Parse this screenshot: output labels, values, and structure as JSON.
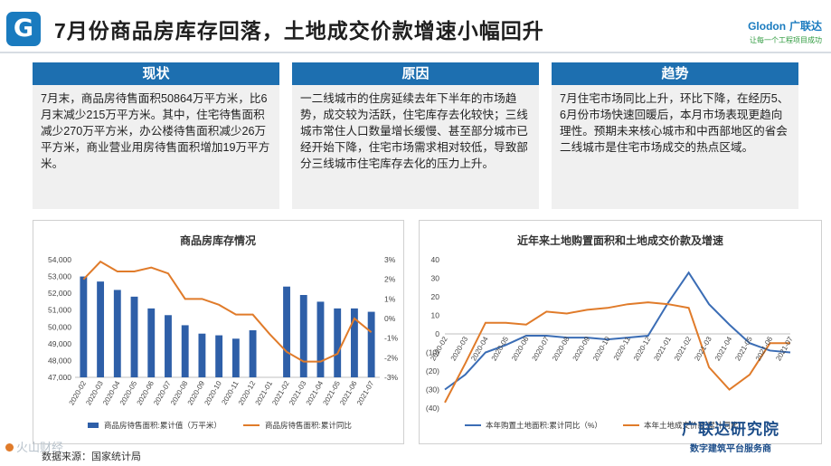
{
  "header": {
    "logo_letter": "G",
    "title": "7月份商品房库存回落，土地成交价款增速小幅回升",
    "brand_name": "Glodon",
    "brand_cn": "广联达",
    "brand_slogan": "让每一个工程项目成功"
  },
  "cards": [
    {
      "heading": "现状",
      "text": "7月末，商品房待售面积50864万平方米，比6月末减少215万平方米。其中，住宅待售面积减少270万平方米，办公楼待售面积减少26万平方米，商业营业用房待售面积增加19万平方米。"
    },
    {
      "heading": "原因",
      "text": "一二线城市的住房延续去年下半年的市场趋势，成交较为活跃，住宅库存去化较快；三线城市常住人口数量增长缓慢、甚至部分城市已经开始下降，住宅市场需求相对较低，导致部分三线城市住宅库存去化的压力上升。"
    },
    {
      "heading": "趋势",
      "text": "7月住宅市场同比上升，环比下降，在经历5、6月份市场快速回暖后，本月市场表现更趋向理性。预期未来核心城市和中西部地区的省会二线城市是住宅市场成交的热点区域。"
    }
  ],
  "chart_data": [
    {
      "type": "bar+line",
      "title": "商品房库存情况",
      "categories": [
        "2020-02",
        "2020-03",
        "2020-04",
        "2020-05",
        "2020-06",
        "2020-07",
        "2020-08",
        "2020-09",
        "2020-10",
        "2020-11",
        "2020-12",
        "2021-01",
        "2021-02",
        "2021-03",
        "2021-04",
        "2021-05",
        "2021-06",
        "2021-07"
      ],
      "series": [
        {
          "name": "商品房待售面积:累计值（万平米）",
          "type": "bar",
          "axis": "left",
          "color": "#2e5fa8",
          "values": [
            53000,
            52700,
            52200,
            51800,
            51100,
            50700,
            50100,
            49600,
            49500,
            49300,
            49800,
            null,
            52400,
            51900,
            51500,
            51100,
            51100,
            50900
          ]
        },
        {
          "name": "商品房待售面积:累计同比",
          "type": "line",
          "axis": "right",
          "color": "#e07b2a",
          "values": [
            2.0,
            2.9,
            2.4,
            2.4,
            2.6,
            2.3,
            1.0,
            1.0,
            0.7,
            0.2,
            0.2,
            -0.8,
            -1.7,
            -2.2,
            -2.2,
            -1.8,
            0.0,
            -0.7
          ]
        }
      ],
      "ylim_left": [
        47000,
        54000
      ],
      "yticks_left": [
        "47,000",
        "48,000",
        "49,000",
        "50,000",
        "51,000",
        "52,000",
        "53,000",
        "54,000"
      ],
      "ylim_right": [
        -3,
        3
      ],
      "yticks_right": [
        "-3%",
        "-2%",
        "-1%",
        "0%",
        "1%",
        "2%",
        "3%"
      ]
    },
    {
      "type": "line",
      "title": "近年来土地购置面积和土地成交价款及增速",
      "categories": [
        "2020-02",
        "2020-03",
        "2020-04",
        "2020-05",
        "2020-06",
        "2020-07",
        "2020-08",
        "2020-09",
        "2020-10",
        "2020-11",
        "2020-12",
        "2021-01",
        "2021-02",
        "2021-03",
        "2021-04",
        "2021-05",
        "2021-06",
        "2021-07"
      ],
      "series": [
        {
          "name": "本年购置土地面积:累计同比（%）",
          "color": "#3b6db5",
          "values": [
            -30,
            -22,
            -10,
            -6,
            -1,
            -1,
            -2,
            -2,
            -3,
            -2,
            -1,
            17,
            33,
            16,
            5,
            -5,
            -9,
            -10
          ]
        },
        {
          "name": "本年土地成交价款:累计同比",
          "color": "#e07b2a",
          "values": [
            -37,
            -16,
            6,
            6,
            5,
            12,
            11,
            13,
            14,
            16,
            17,
            16,
            14,
            -18,
            -30,
            -22,
            -5,
            -5
          ]
        }
      ],
      "ylim": [
        -40,
        40
      ],
      "yticks": [
        "(40)",
        "(30)",
        "(20)",
        "(10)",
        "0",
        "10",
        "20",
        "30",
        "40"
      ]
    }
  ],
  "source": "数据来源：国家统计局",
  "watermark_left": "火山财经",
  "watermark_right": {
    "name": "广联达研究院",
    "sub": "数字建筑平台服务商"
  }
}
